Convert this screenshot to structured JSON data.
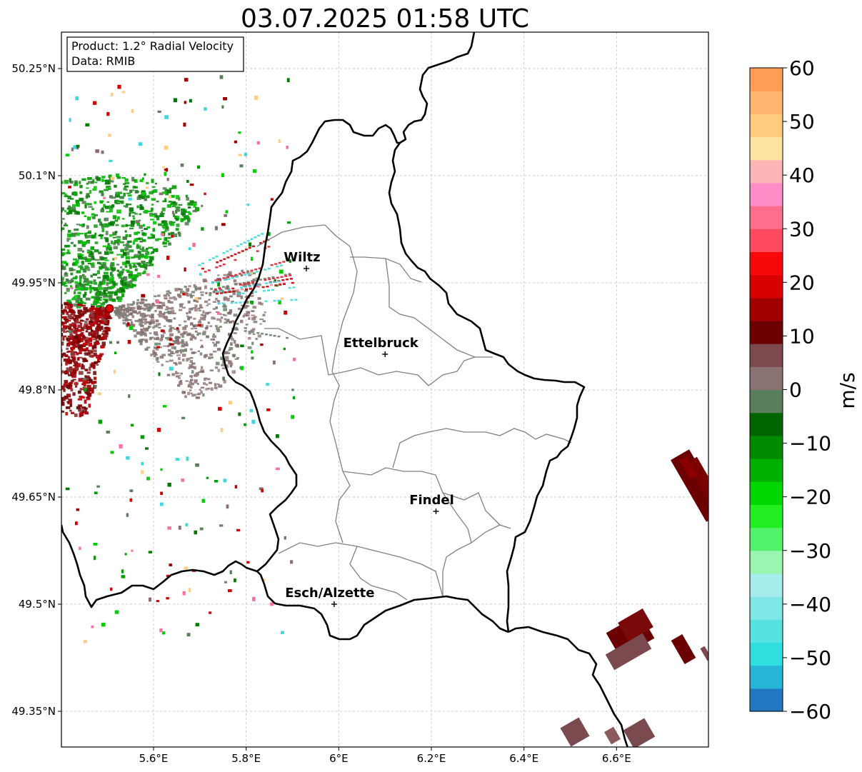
{
  "title": "03.07.2025 01:58 UTC",
  "info": {
    "product": "Product: 1.2° Radial Velocity",
    "data_source": "Data: RMIB"
  },
  "map": {
    "lat_ticks": [
      {
        "value": 50.25,
        "label": "50.25°N"
      },
      {
        "value": 50.1,
        "label": "50.1°N"
      },
      {
        "value": 49.95,
        "label": "49.95°N"
      },
      {
        "value": 49.8,
        "label": "49.8°N"
      },
      {
        "value": 49.65,
        "label": "49.65°N"
      },
      {
        "value": 49.5,
        "label": "49.5°N"
      },
      {
        "value": 49.35,
        "label": "49.35°N"
      }
    ],
    "lon_ticks": [
      {
        "value": 5.6,
        "label": "5.6°E"
      },
      {
        "value": 5.8,
        "label": "5.8°E"
      },
      {
        "value": 6.0,
        "label": "6°E"
      },
      {
        "value": 6.2,
        "label": "6.2°E"
      },
      {
        "value": 6.4,
        "label": "6.4°E"
      },
      {
        "value": 6.6,
        "label": "6.6°E"
      }
    ],
    "cities": [
      {
        "name": "Wiltz",
        "lon": 5.93,
        "lat": 49.97
      },
      {
        "name": "Ettelbruck",
        "lon": 6.1,
        "lat": 49.85
      },
      {
        "name": "Findel",
        "lon": 6.21,
        "lat": 49.63
      },
      {
        "name": "Esch/Alzette",
        "lon": 5.99,
        "lat": 49.5
      }
    ],
    "radar_site": {
      "lon": 5.505,
      "lat": 49.914
    }
  },
  "colorbar": {
    "label": "m/s",
    "min": -60,
    "max": 60,
    "ticks": [
      "60",
      "50",
      "40",
      "30",
      "20",
      "10",
      "0",
      "−10",
      "−20",
      "−30",
      "−40",
      "−50",
      "−60"
    ],
    "colors": [
      "#2178c0",
      "#26b5d6",
      "#30dddf",
      "#57e2e2",
      "#7fe8e6",
      "#a8eded",
      "#9af5b0",
      "#53f26b",
      "#22ef22",
      "#00d700",
      "#00b000",
      "#008a00",
      "#006400",
      "#5a7f5a",
      "#8a7272",
      "#7a4a4e",
      "#6a0000",
      "#a00000",
      "#d80000",
      "#f80808",
      "#ff4a5f",
      "#ff6e8a",
      "#ff8ec8",
      "#ffb5b5",
      "#ffe4a0",
      "#ffcc7e",
      "#ffb56e",
      "#ff9c55"
    ]
  }
}
